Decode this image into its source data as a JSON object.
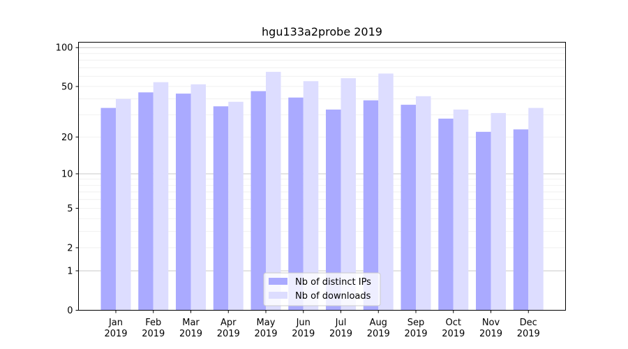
{
  "chart_data": {
    "type": "bar",
    "title": "hgu133a2probe 2019",
    "xlabel": "",
    "ylabel": "",
    "yscale": "log(1+y)",
    "ylim": [
      0,
      110
    ],
    "yticks": [
      0,
      1,
      2,
      5,
      10,
      20,
      50,
      100
    ],
    "categories": [
      [
        "Jan",
        "2019"
      ],
      [
        "Feb",
        "2019"
      ],
      [
        "Mar",
        "2019"
      ],
      [
        "Apr",
        "2019"
      ],
      [
        "May",
        "2019"
      ],
      [
        "Jun",
        "2019"
      ],
      [
        "Jul",
        "2019"
      ],
      [
        "Aug",
        "2019"
      ],
      [
        "Sep",
        "2019"
      ],
      [
        "Oct",
        "2019"
      ],
      [
        "Nov",
        "2019"
      ],
      [
        "Dec",
        "2019"
      ]
    ],
    "series": [
      {
        "name": "Nb of distinct IPs",
        "color": "#aaaaff",
        "values": [
          34,
          45,
          44,
          35,
          46,
          41,
          33,
          39,
          36,
          28,
          22,
          23
        ]
      },
      {
        "name": "Nb of downloads",
        "color": "#ddddff",
        "values": [
          40,
          54,
          52,
          38,
          65,
          55,
          58,
          63,
          42,
          33,
          31,
          34
        ]
      }
    ],
    "legend_position": "bottom-center",
    "grid": true
  }
}
